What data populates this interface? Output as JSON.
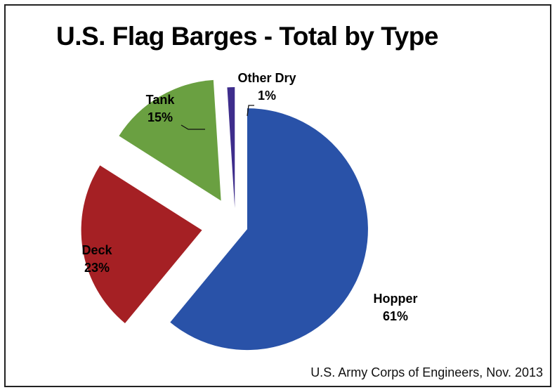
{
  "chart_data": {
    "type": "pie",
    "title": "U.S. Flag Barges - Total by Type",
    "exploded": true,
    "slices": [
      {
        "label": "Hopper",
        "value_label": "61%",
        "value": 61,
        "color": "#2952a8"
      },
      {
        "label": "Deck",
        "value_label": "23%",
        "value": 23,
        "color": "#a52024"
      },
      {
        "label": "Tank",
        "value_label": "15%",
        "value": 15,
        "color": "#6aa041"
      },
      {
        "label": "Other Dry",
        "value_label": "1%",
        "value": 1,
        "color": "#3e2d8c"
      }
    ],
    "source": "U.S. Army Corps of Engineers, Nov. 2013"
  }
}
